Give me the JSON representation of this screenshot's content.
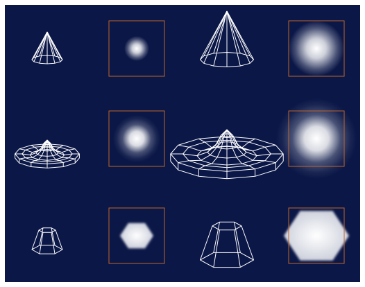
{
  "colors": {
    "panel": "#0b1747",
    "wire": "#ffffff",
    "frame": "#c0652a",
    "glow": "#ffffff"
  },
  "rows": [
    {
      "shape": "cone",
      "items": [
        {
          "kind": "wireframe",
          "shape": "cone",
          "size": "small"
        },
        {
          "kind": "sprite",
          "shape": "round",
          "size": "small",
          "softness": "soft"
        },
        {
          "kind": "wireframe",
          "shape": "cone",
          "size": "large"
        },
        {
          "kind": "sprite",
          "shape": "round",
          "size": "large",
          "softness": "soft"
        }
      ]
    },
    {
      "shape": "sinc",
      "items": [
        {
          "kind": "wireframe",
          "shape": "sinc",
          "size": "small"
        },
        {
          "kind": "sprite",
          "shape": "round",
          "size": "small",
          "softness": "very-soft"
        },
        {
          "kind": "wireframe",
          "shape": "sinc",
          "size": "large"
        },
        {
          "kind": "sprite",
          "shape": "round",
          "size": "large",
          "softness": "very-soft"
        }
      ]
    },
    {
      "shape": "frustum",
      "items": [
        {
          "kind": "wireframe",
          "shape": "frustum",
          "size": "small"
        },
        {
          "kind": "sprite",
          "shape": "hexagon",
          "size": "small",
          "softness": "hard"
        },
        {
          "kind": "wireframe",
          "shape": "frustum",
          "size": "large"
        },
        {
          "kind": "sprite",
          "shape": "hexagon",
          "size": "large",
          "softness": "hard"
        }
      ]
    }
  ]
}
